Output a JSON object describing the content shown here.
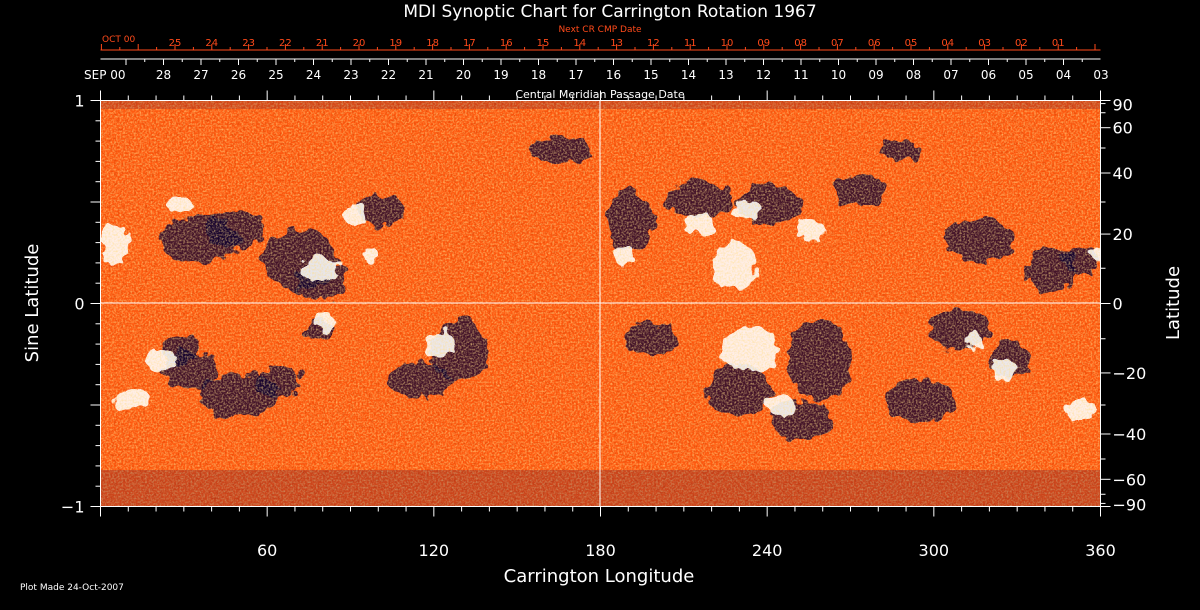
{
  "chart_data": {
    "type": "heatmap",
    "title": "MDI Synoptic Chart for Carrington Rotation 1967",
    "xlabel": "Carrington Longitude",
    "ylabel_left": "Sine Latitude",
    "ylabel_right": "Latitude",
    "xlim": [
      0,
      360
    ],
    "ylim": [
      -1,
      1
    ],
    "x_ticks": [
      60,
      120,
      180,
      240,
      300,
      360
    ],
    "y_ticks_left": [
      {
        "value": 1,
        "label": "1"
      },
      {
        "value": 0,
        "label": "0"
      },
      {
        "value": -1,
        "label": "−1"
      }
    ],
    "y_ticks_right": [
      90,
      60,
      40,
      20,
      0,
      -20,
      -40,
      -60,
      -90
    ],
    "cmp_axis": {
      "label": "Central Meridian Passage Date",
      "month_label": "SEP 00",
      "days": [
        "28",
        "27",
        "26",
        "25",
        "24",
        "23",
        "22",
        "21",
        "20",
        "19",
        "18",
        "17",
        "16",
        "15",
        "14",
        "13",
        "12",
        "11",
        "10",
        "09",
        "08",
        "07",
        "06",
        "05",
        "04",
        "03"
      ]
    },
    "next_cr_axis": {
      "label": "Next CR CMP Date",
      "month_label": "OCT 00",
      "days": [
        "25",
        "24",
        "23",
        "22",
        "21",
        "20",
        "19",
        "18",
        "17",
        "16",
        "15",
        "14",
        "13",
        "12",
        "11",
        "10",
        "09",
        "08",
        "07",
        "06",
        "05",
        "04",
        "03",
        "02",
        "01"
      ]
    },
    "colors": {
      "background": "#000000",
      "axes": "#ffffff",
      "next_cr_axis": "#ff4a1a",
      "map_base": "#ff5a10",
      "positive_field": "#ffffff",
      "negative_field": "#0c0230"
    }
  },
  "footer": {
    "plot_made": "Plot Made 24-Oct-2007"
  }
}
